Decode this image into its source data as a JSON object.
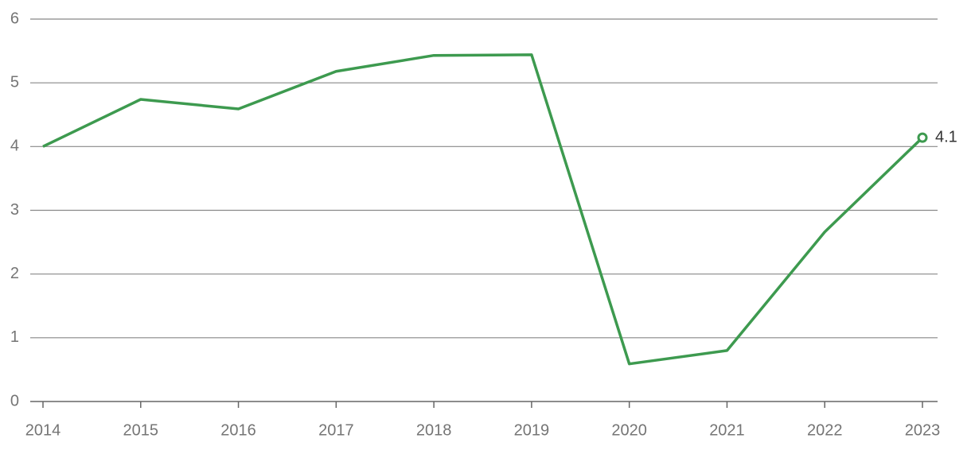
{
  "chart_data": {
    "type": "line",
    "x": [
      "2014",
      "2015",
      "2016",
      "2017",
      "2018",
      "2019",
      "2020",
      "2021",
      "2022",
      "2023"
    ],
    "series": [
      {
        "color": "#3d9a4f",
        "values": [
          4.0,
          4.74,
          4.59,
          5.18,
          5.43,
          5.44,
          0.59,
          0.8,
          2.66,
          4.14
        ],
        "value_labels": [
          null,
          null,
          null,
          null,
          null,
          null,
          null,
          null,
          null,
          "4.1"
        ]
      }
    ],
    "ylim": [
      0,
      6
    ],
    "yticks": [
      0,
      1,
      2,
      3,
      4,
      5,
      6
    ],
    "grid": true
  }
}
